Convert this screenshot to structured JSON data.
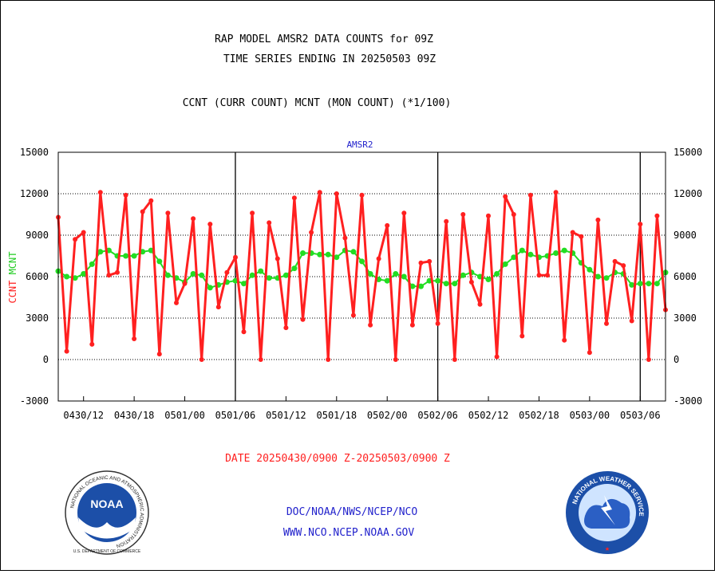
{
  "header": {
    "line1": "RAP MODEL AMSR2 DATA COUNTS for 09Z",
    "line2": "TIME SERIES ENDING IN 20250503 09Z",
    "line3": "CCNT (CURR COUNT) MCNT (MON COUNT) (*1/100)"
  },
  "footer": {
    "date_range": "DATE 20250430/0900 Z-20250503/0900 Z",
    "org_path": "DOC/NOAA/NWS/NCEP/NCO",
    "website": "WWW.NCO.NCEP.NOAA.GOV"
  },
  "logos": {
    "noaa_center": "NOAA",
    "noaa_ring": "NATIONAL OCEANIC AND ATMOSPHERIC ADMINISTRATION",
    "noaa_bottom": "U.S. DEPARTMENT OF COMMERCE",
    "nws_ring": "NATIONAL WEATHER SERVICE"
  },
  "colors": {
    "ccnt": "#ff2020",
    "mcnt": "#22dd22",
    "subtitle": "#2222cc",
    "footer_red": "#ff2020",
    "footer_blue": "#2222cc"
  },
  "chart_data": {
    "type": "line",
    "title": "AMSR2",
    "ylabel_ccnt": "CCNT",
    "ylabel_mcnt": "MCNT",
    "ylim": [
      -3000,
      15000
    ],
    "yticks": [
      -3000,
      0,
      3000,
      6000,
      9000,
      12000,
      15000
    ],
    "ytick_labels": [
      "-3000",
      "0",
      "3000",
      "6000",
      "9000",
      "12000",
      "15000"
    ],
    "xlim_hours": [
      0,
      72
    ],
    "xticks": [
      {
        "hour": 3,
        "label": "0430/12"
      },
      {
        "hour": 9,
        "label": "0430/18"
      },
      {
        "hour": 15,
        "label": "0501/00"
      },
      {
        "hour": 21,
        "label": "0501/06"
      },
      {
        "hour": 27,
        "label": "0501/12"
      },
      {
        "hour": 33,
        "label": "0501/18"
      },
      {
        "hour": 39,
        "label": "0502/00"
      },
      {
        "hour": 45,
        "label": "0502/06"
      },
      {
        "hour": 51,
        "label": "0502/12"
      },
      {
        "hour": 57,
        "label": "0502/18"
      },
      {
        "hour": 63,
        "label": "0503/00"
      },
      {
        "hour": 69,
        "label": "0503/06"
      }
    ],
    "day_boundaries_hours": [
      21,
      45,
      69
    ],
    "grid": "horizontal dotted",
    "series": [
      {
        "name": "CCNT",
        "color": "#ff2020",
        "values": [
          10300,
          600,
          8700,
          9200,
          1100,
          12100,
          6100,
          6300,
          11900,
          1500,
          10700,
          11500,
          400,
          10600,
          4100,
          5500,
          10200,
          0,
          9800,
          3800,
          6300,
          7400,
          2000,
          10600,
          0,
          9900,
          7300,
          2300,
          11700,
          2900,
          9200,
          12100,
          0,
          12000,
          8800,
          3200,
          11900,
          2500,
          7300,
          9700,
          0,
          10600,
          2500,
          7000,
          7100,
          2600,
          10000,
          0,
          10500,
          5600,
          4000,
          10400,
          200,
          11800,
          10500,
          1700,
          11900,
          6100,
          6100,
          12100,
          1400,
          9200,
          8900,
          500,
          10100,
          2600,
          7100,
          6800,
          2800,
          9800,
          0,
          10400,
          3600
        ]
      },
      {
        "name": "MCNT",
        "color": "#22dd22",
        "values": [
          6400,
          6000,
          5900,
          6200,
          6900,
          7800,
          7900,
          7500,
          7500,
          7500,
          7800,
          7900,
          7100,
          6100,
          5900,
          5600,
          6200,
          6100,
          5200,
          5400,
          5600,
          5700,
          5500,
          6100,
          6400,
          5900,
          5900,
          6100,
          6600,
          7700,
          7700,
          7600,
          7600,
          7400,
          7900,
          7800,
          7100,
          6200,
          5800,
          5700,
          6200,
          6000,
          5300,
          5300,
          5700,
          5700,
          5500,
          5500,
          6100,
          6300,
          6000,
          5800,
          6200,
          6900,
          7400,
          7900,
          7600,
          7400,
          7500,
          7700,
          7900,
          7700,
          7000,
          6500,
          6000,
          5900,
          6300,
          6200,
          5400,
          5500,
          5500,
          5500,
          6300
        ]
      }
    ]
  }
}
